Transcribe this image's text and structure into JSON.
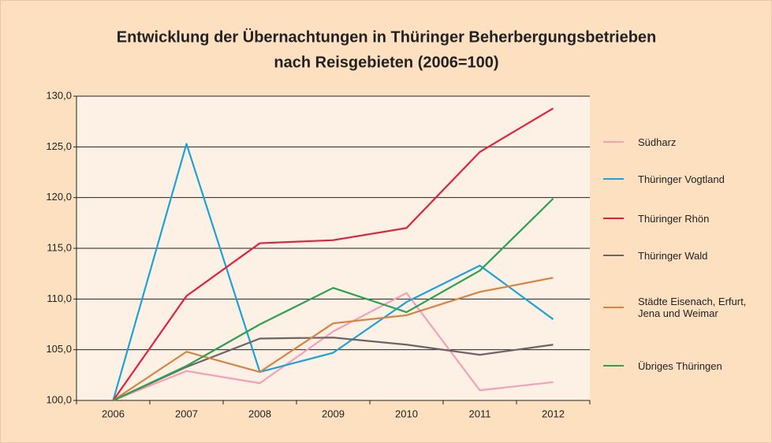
{
  "chart_data": {
    "type": "line",
    "title": [
      "Entwicklung der Übernachtungen in Thüringer Beherbergungsbetrieben",
      "nach Reisgebieten (2006=100)"
    ],
    "categories": [
      "2006",
      "2007",
      "2008",
      "2009",
      "2010",
      "2011",
      "2012"
    ],
    "series": [
      {
        "name": "Südharz",
        "color": "#f4a0ba",
        "values": [
          100,
          102.9,
          101.7,
          106.8,
          110.6,
          101.0,
          101.8
        ]
      },
      {
        "name": "Thüringer Vogtland",
        "color": "#1ba3d9",
        "values": [
          100,
          125.3,
          102.8,
          104.7,
          109.7,
          113.3,
          108.0
        ]
      },
      {
        "name": "Thüringer Rhön",
        "color": "#e0223e",
        "values": [
          100,
          110.3,
          115.5,
          115.8,
          117.0,
          124.5,
          128.8
        ]
      },
      {
        "name": "Thüringer Wald",
        "color": "#6d6565",
        "values": [
          100,
          103.3,
          106.1,
          106.2,
          105.5,
          104.5,
          105.5
        ]
      },
      {
        "name": "Städte Eisenach, Erfurt, Jena und Weimar",
        "color": "#d98342",
        "values": [
          100,
          104.8,
          102.8,
          107.6,
          108.4,
          110.7,
          112.1
        ]
      },
      {
        "name": "Übriges Thüringen",
        "color": "#2ba252",
        "values": [
          100,
          103.4,
          107.5,
          111.1,
          108.7,
          112.8,
          119.9
        ]
      }
    ],
    "ylim": [
      100,
      130
    ],
    "yticks": [
      {
        "value": 100,
        "label": "100,0"
      },
      {
        "value": 105,
        "label": "105,0"
      },
      {
        "value": 110,
        "label": "110,0"
      },
      {
        "value": 115,
        "label": "115,0"
      },
      {
        "value": 120,
        "label": "120,0"
      },
      {
        "value": 125,
        "label": "125,0"
      },
      {
        "value": 130,
        "label": "130,0"
      }
    ],
    "grid": true
  }
}
